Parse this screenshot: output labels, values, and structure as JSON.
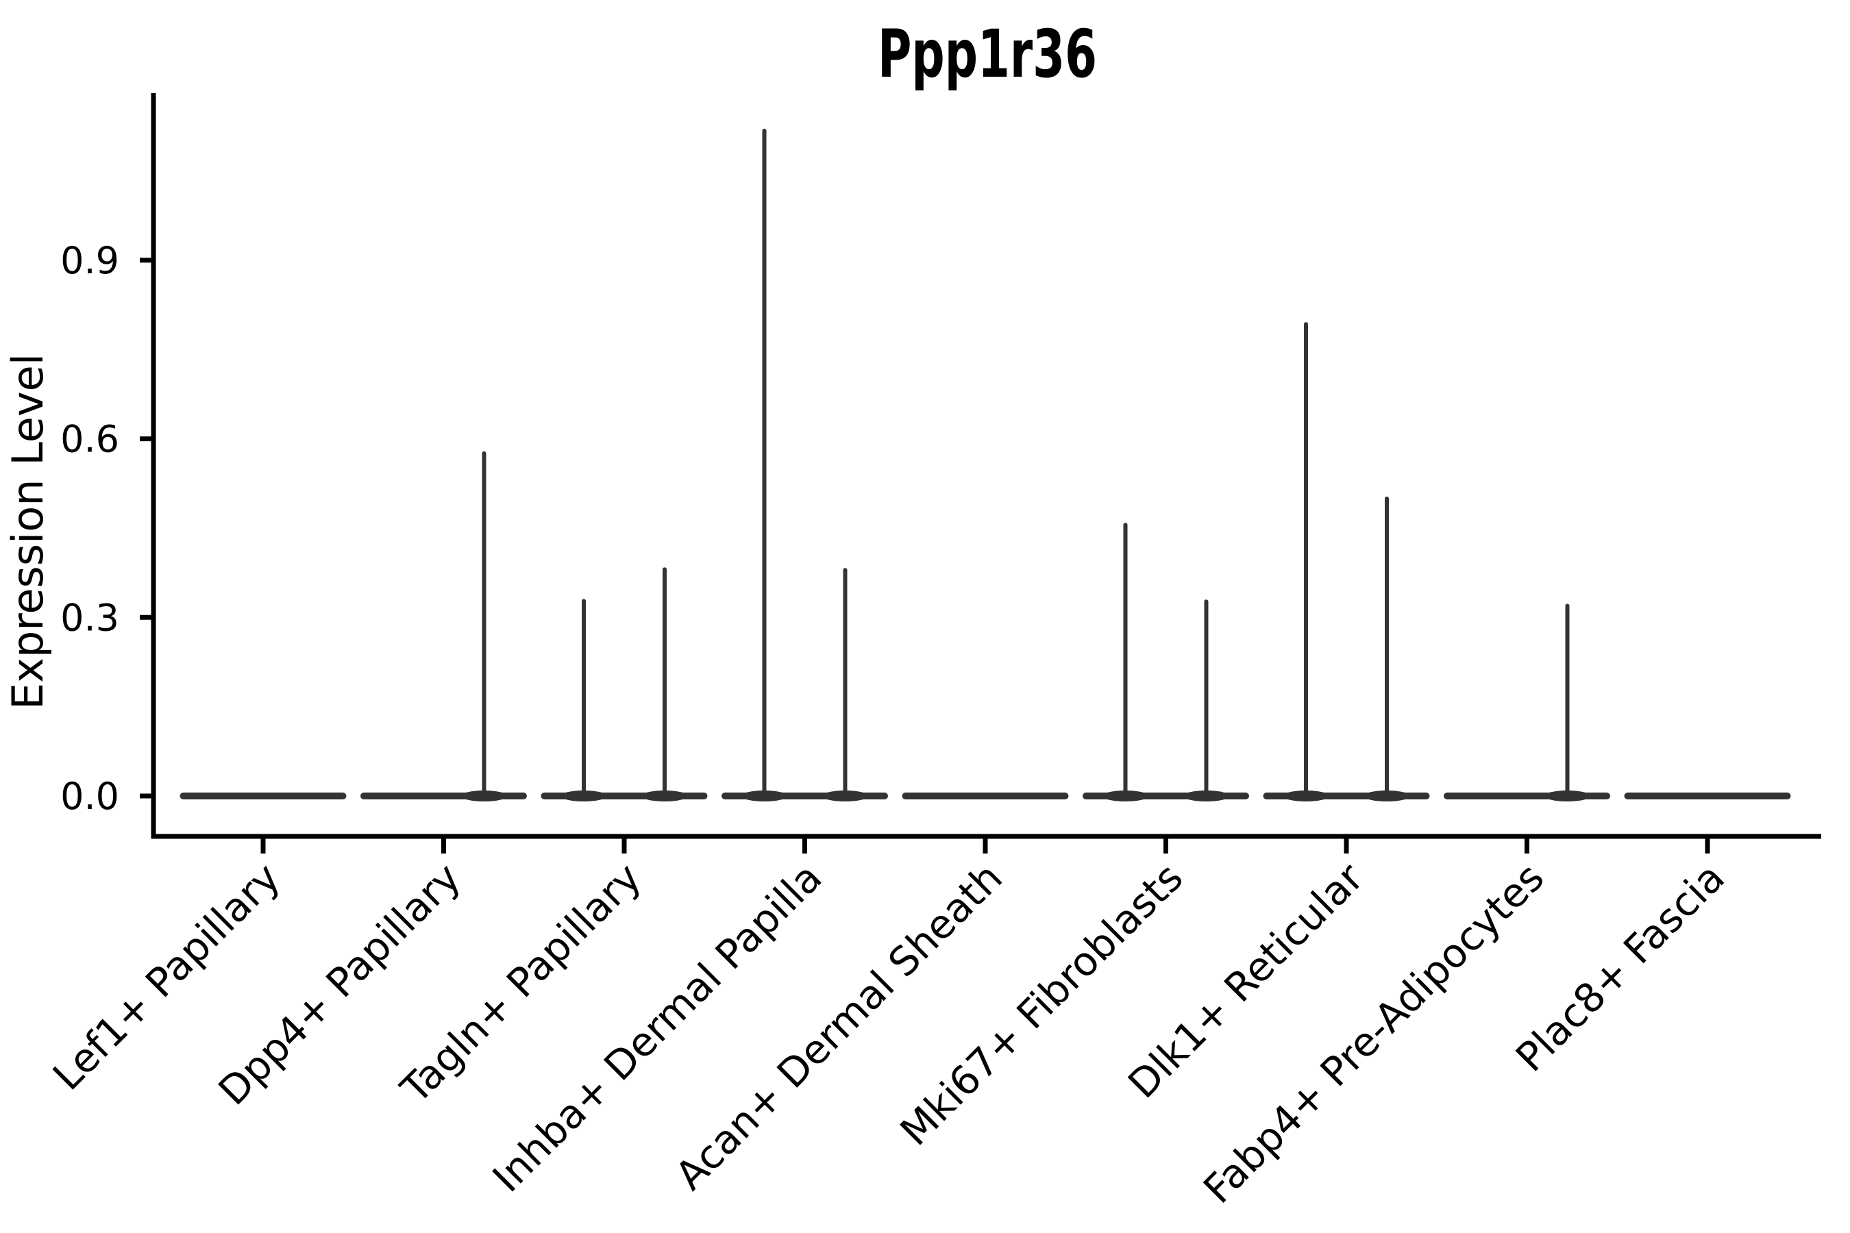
{
  "chart_data": {
    "type": "violin",
    "title": "Ppp1r36",
    "xlabel": "",
    "ylabel": "Expression Level",
    "ytick_labels": [
      "0.0",
      "0.3",
      "0.6",
      "0.9"
    ],
    "ytick_values": [
      0.0,
      0.3,
      0.6,
      0.9
    ],
    "ylim": [
      -0.068,
      1.176
    ],
    "grid": false,
    "legend": null,
    "categories": [
      "Lef1+ Papillary",
      "Dpp4+ Papillary",
      "Tagln+ Papillary",
      "Inhba+ Dermal Papilla",
      "Acan+ Dermal Sheath",
      "Mki67+ Fibroblasts",
      "Dlk1+ Reticular",
      "Fabp4+ Pre-Adipocytes",
      "Plac8+ Fascia"
    ],
    "violins": [
      {
        "category": "Lef1+ Papillary",
        "base_value": 0,
        "peaks": []
      },
      {
        "category": "Dpp4+ Papillary",
        "base_value": 0,
        "peaks": [
          {
            "side": 1,
            "value": 0.579
          }
        ]
      },
      {
        "category": "Tagln+ Papillary",
        "base_value": 0,
        "peaks": [
          {
            "side": -1,
            "value": 0.331
          },
          {
            "side": 1,
            "value": 0.384
          }
        ]
      },
      {
        "category": "Inhba+ Dermal Papilla",
        "base_value": 0,
        "peaks": [
          {
            "side": -1,
            "value": 1.121
          },
          {
            "side": 1,
            "value": 0.383
          }
        ]
      },
      {
        "category": "Acan+ Dermal Sheath",
        "base_value": 0,
        "peaks": []
      },
      {
        "category": "Mki67+ Fibroblasts",
        "base_value": 0,
        "peaks": [
          {
            "side": -1,
            "value": 0.459
          },
          {
            "side": 1,
            "value": 0.33
          }
        ]
      },
      {
        "category": "Dlk1+ Reticular",
        "base_value": 0,
        "peaks": [
          {
            "side": -1,
            "value": 0.796
          },
          {
            "side": 1,
            "value": 0.503
          }
        ]
      },
      {
        "category": "Fabp4+ Pre-Adipocytes",
        "base_value": 0,
        "peaks": [
          {
            "side": 1,
            "value": 0.323
          }
        ]
      },
      {
        "category": "Plac8+ Fascia",
        "base_value": 0,
        "peaks": []
      }
    ],
    "colors": {
      "violin": "#333333",
      "axis": "#000000",
      "text": "#000000",
      "background": "#ffffff"
    }
  }
}
